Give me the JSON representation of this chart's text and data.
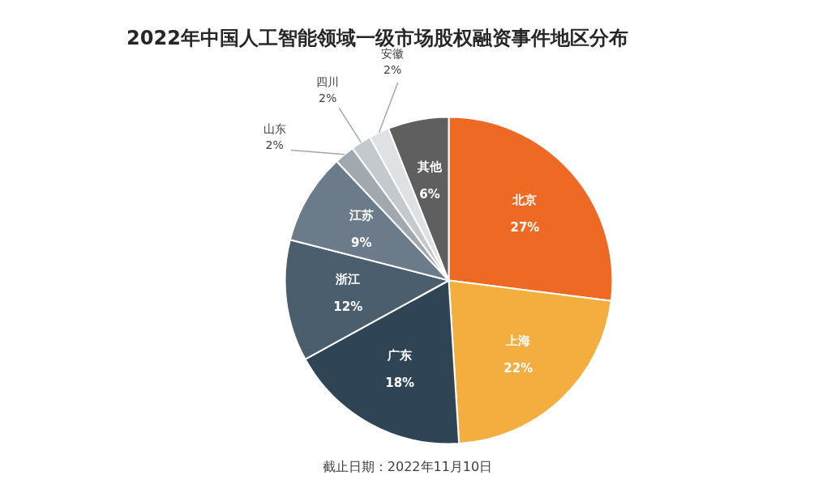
{
  "chart_data": {
    "type": "pie",
    "title": "2022年中国人工智能领域一级市场股权融资事件地区分布",
    "categories": [
      "北京",
      "上海",
      "广东",
      "浙江",
      "江苏",
      "山东",
      "四川",
      "安徽",
      "其他"
    ],
    "values": [
      27,
      22,
      18,
      12,
      9,
      2,
      2,
      2,
      6
    ],
    "colors": [
      "#ee6a24",
      "#f4ae3e",
      "#2f4556",
      "#4b5e6e",
      "#6b7b8a",
      "#a0a8b0",
      "#c4c9ce",
      "#dfe2e5",
      "#5f5f5f"
    ],
    "value_labels": [
      "27%",
      "22%",
      "18%",
      "12%",
      "9%",
      "2%",
      "2%",
      "2%",
      "6%"
    ],
    "annotations": [
      "截止日期：2022年11月10日"
    ]
  }
}
